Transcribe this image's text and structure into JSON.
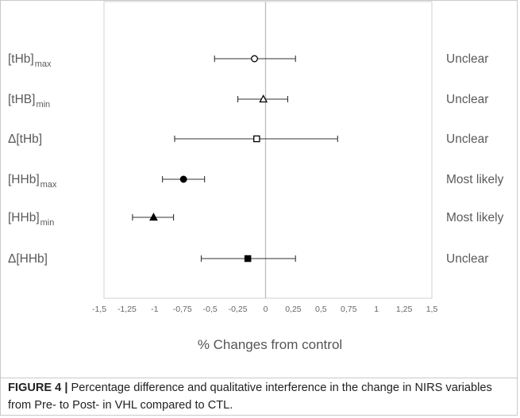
{
  "chart_data": {
    "type": "scatter",
    "title": "",
    "xlabel": "% Changes from control",
    "ylabel": "",
    "xlim": [
      -1.5,
      1.5
    ],
    "x_ticks": [
      "-1,5",
      "-1,25",
      "-1",
      "-0,75",
      "-0,5",
      "-0,25",
      "0",
      "0,25",
      "0,5",
      "0,75",
      "1",
      "1,25",
      "1,5"
    ],
    "x_tick_values": [
      -1.5,
      -1.25,
      -1,
      -0.75,
      -0.5,
      -0.25,
      0,
      0.25,
      0.5,
      0.75,
      1,
      1.25,
      1.5
    ],
    "grid": false,
    "reference_line_x": 0,
    "rows": [
      {
        "label": "[tHb]",
        "subscript": "max",
        "value": -0.1,
        "ci_low": -0.46,
        "ci_high": 0.27,
        "marker": "circle-open",
        "inference": "Unclear"
      },
      {
        "label": "[tHB]",
        "subscript": "min",
        "value": -0.02,
        "ci_low": -0.25,
        "ci_high": 0.2,
        "marker": "triangle-open",
        "inference": "Unclear"
      },
      {
        "label": "Δ[tHb]",
        "subscript": "",
        "value": -0.08,
        "ci_low": -0.82,
        "ci_high": 0.65,
        "marker": "square-open",
        "inference": "Unclear"
      },
      {
        "label": "[HHb]",
        "subscript": "max",
        "value": -0.74,
        "ci_low": -0.93,
        "ci_high": -0.55,
        "marker": "circle-filled",
        "inference": "Most likely"
      },
      {
        "label": "[HHb]",
        "subscript": "min",
        "value": -1.01,
        "ci_low": -1.2,
        "ci_high": -0.83,
        "marker": "triangle-filled",
        "inference": "Most likely"
      },
      {
        "label": "Δ[HHb]",
        "subscript": "",
        "value": -0.16,
        "ci_low": -0.58,
        "ci_high": 0.27,
        "marker": "square-filled",
        "inference": "Unclear"
      }
    ]
  },
  "caption": {
    "lead": "FIGURE 4 |",
    "text": " Percentage difference and qualitative interference in the change in NIRS variables from Pre- to Post- in VHL compared to CTL."
  }
}
